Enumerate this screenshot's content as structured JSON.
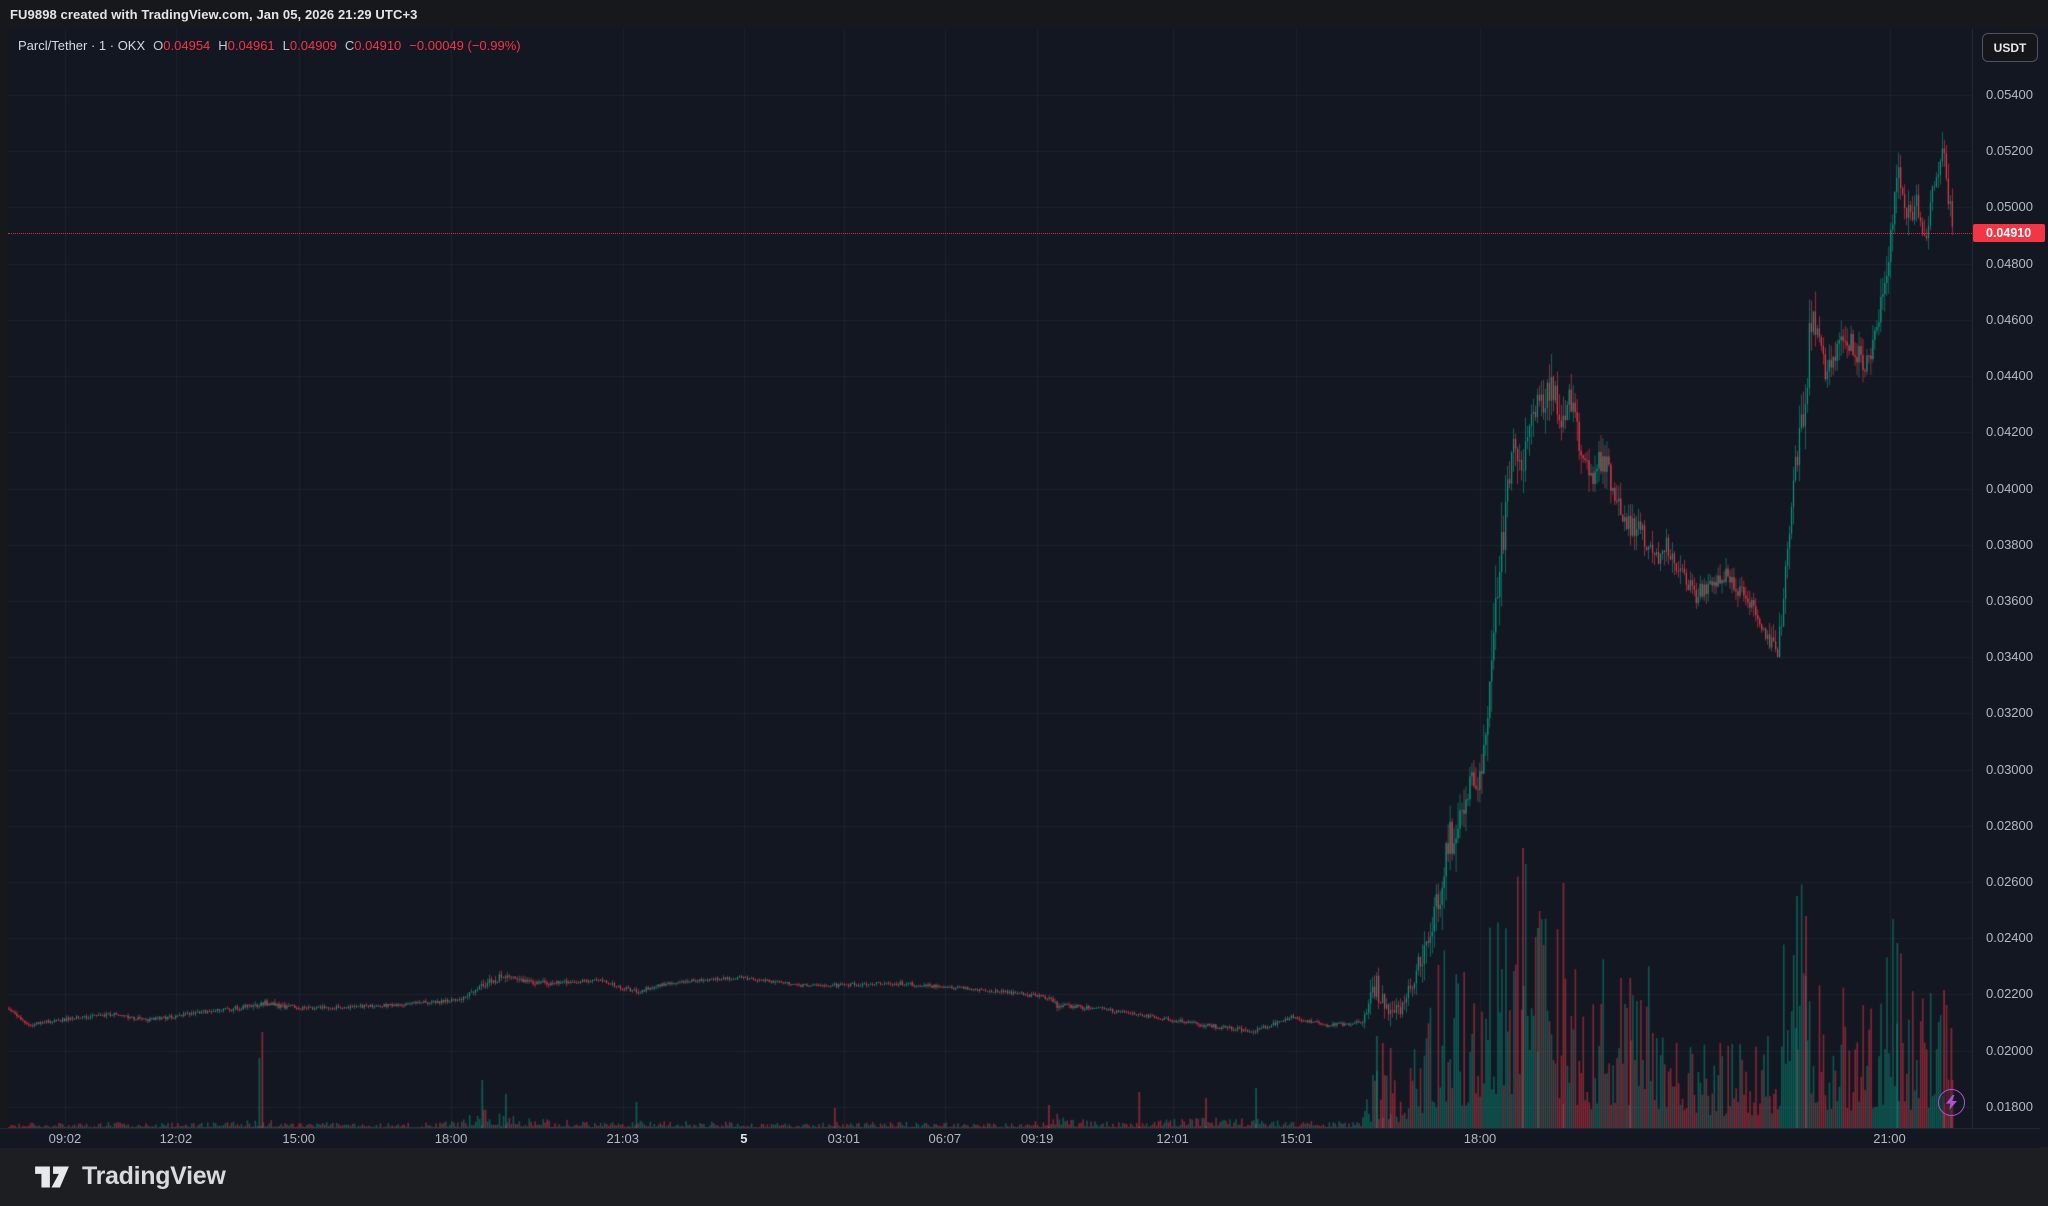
{
  "header": {
    "title": "FU9898 created with TradingView.com, Jan 05, 2026 21:29 UTC+3"
  },
  "legend": {
    "title": "Parcl/Tether · 1 · OKX",
    "ohlc": [
      {
        "label": "O",
        "value": "0.04954"
      },
      {
        "label": "H",
        "value": "0.04961"
      },
      {
        "label": "L",
        "value": "0.04909"
      },
      {
        "label": "C",
        "value": "0.04910"
      }
    ],
    "change": "−0.00049 (−0.99%)"
  },
  "price_axis": {
    "currency_button": "USDT",
    "tick_labels": [
      "0.05400",
      "0.05200",
      "0.05000",
      "0.04800",
      "0.04600",
      "0.04400",
      "0.04200",
      "0.04000",
      "0.03800",
      "0.03600",
      "0.03400",
      "0.03200",
      "0.03000",
      "0.02800",
      "0.02600",
      "0.02400",
      "0.02200",
      "0.02000",
      "0.01800"
    ],
    "tick_values": [
      0.054,
      0.052,
      0.05,
      0.048,
      0.046,
      0.044,
      0.042,
      0.04,
      0.038,
      0.036,
      0.034,
      0.032,
      0.03,
      0.028,
      0.026,
      0.024,
      0.022,
      0.02,
      0.018
    ],
    "last_price_label": "0.04910"
  },
  "time_axis": {
    "ticks": [
      {
        "label": "09:02",
        "f": 0.029,
        "day": false
      },
      {
        "label": "12:02",
        "f": 0.0855,
        "day": false
      },
      {
        "label": "15:00",
        "f": 0.148,
        "day": false
      },
      {
        "label": "18:00",
        "f": 0.2256,
        "day": false
      },
      {
        "label": "21:03",
        "f": 0.313,
        "day": false
      },
      {
        "label": "5",
        "f": 0.3747,
        "day": true
      },
      {
        "label": "03:01",
        "f": 0.4256,
        "day": false
      },
      {
        "label": "06:07",
        "f": 0.477,
        "day": false
      },
      {
        "label": "09:19",
        "f": 0.524,
        "day": false
      },
      {
        "label": "12:01",
        "f": 0.593,
        "day": false
      },
      {
        "label": "15:01",
        "f": 0.656,
        "day": false
      },
      {
        "label": "18:00",
        "f": 0.7495,
        "day": false
      },
      {
        "label": "21:00",
        "f": 0.958,
        "day": false
      }
    ]
  },
  "footer": {
    "brand": "TradingView"
  },
  "chart_data": {
    "type": "candlestick",
    "symbol": "Parcl/Tether",
    "pair": "PARCL/USDT",
    "interval": "1",
    "exchange": "OKX",
    "ohlc": {
      "open": 0.04954,
      "high": 0.04961,
      "low": 0.04909,
      "close": 0.0491,
      "change": -0.00049,
      "change_pct": -0.99
    },
    "last_price": 0.0491,
    "ylim_visible": [
      0.01725,
      0.05635
    ],
    "grid": true,
    "colors": {
      "background": "#131722",
      "up": "#089981",
      "down": "#f23645",
      "volume_up": "rgba(8,153,129,0.5)",
      "volume_down": "rgba(242,54,69,0.5)",
      "grid": "rgba(163,177,205,0.07)",
      "accent_red": "#f23645",
      "flash_purple": "#b44fd8"
    },
    "price_anchors_comment": "sampled trend read off chart: [x_fraction, price, local_noise, base_volume_px]",
    "price_anchors": [
      [
        0.001,
        0.0215,
        0.00015,
        4
      ],
      [
        0.009,
        0.0209,
        0.00015,
        5
      ],
      [
        0.027,
        0.0211,
        0.00015,
        4
      ],
      [
        0.052,
        0.0213,
        0.00015,
        5
      ],
      [
        0.072,
        0.0211,
        0.00015,
        4
      ],
      [
        0.103,
        0.0214,
        0.00015,
        5
      ],
      [
        0.126,
        0.0216,
        0.0002,
        8
      ],
      [
        0.129,
        0.0217,
        0.00025,
        10
      ],
      [
        0.149,
        0.0215,
        0.00015,
        5
      ],
      [
        0.189,
        0.0216,
        0.00013,
        4
      ],
      [
        0.23,
        0.0218,
        0.00016,
        6
      ],
      [
        0.241,
        0.0223,
        0.00028,
        16
      ],
      [
        0.253,
        0.0227,
        0.00028,
        12
      ],
      [
        0.271,
        0.0224,
        0.0002,
        8
      ],
      [
        0.301,
        0.0225,
        0.00015,
        5
      ],
      [
        0.32,
        0.0221,
        0.0002,
        9
      ],
      [
        0.335,
        0.0224,
        0.00015,
        6
      ],
      [
        0.373,
        0.0226,
        0.00013,
        5
      ],
      [
        0.408,
        0.0223,
        0.00013,
        5
      ],
      [
        0.454,
        0.0224,
        0.00015,
        5
      ],
      [
        0.505,
        0.0221,
        0.00013,
        4
      ],
      [
        0.53,
        0.0219,
        0.00016,
        6
      ],
      [
        0.534,
        0.0216,
        0.00022,
        12
      ],
      [
        0.556,
        0.0215,
        0.00013,
        5
      ],
      [
        0.582,
        0.0212,
        0.00013,
        6
      ],
      [
        0.61,
        0.0209,
        0.00016,
        9
      ],
      [
        0.635,
        0.0207,
        0.00016,
        8
      ],
      [
        0.654,
        0.0212,
        0.00016,
        7
      ],
      [
        0.671,
        0.0209,
        0.00013,
        5
      ],
      [
        0.689,
        0.021,
        0.00016,
        6
      ],
      [
        0.697,
        0.0222,
        0.0012,
        60
      ],
      [
        0.702,
        0.0213,
        0.0008,
        55
      ],
      [
        0.711,
        0.0216,
        0.0005,
        25
      ],
      [
        0.719,
        0.0232,
        0.0012,
        90
      ],
      [
        0.728,
        0.0253,
        0.0015,
        140
      ],
      [
        0.737,
        0.0283,
        0.0018,
        160
      ],
      [
        0.743,
        0.0292,
        0.0012,
        140
      ],
      [
        0.75,
        0.03,
        0.0012,
        130
      ],
      [
        0.756,
        0.034,
        0.002,
        190
      ],
      [
        0.761,
        0.0382,
        0.0022,
        180
      ],
      [
        0.766,
        0.0415,
        0.002,
        220
      ],
      [
        0.771,
        0.0408,
        0.0018,
        240
      ],
      [
        0.777,
        0.0425,
        0.0015,
        170
      ],
      [
        0.782,
        0.0432,
        0.0015,
        180
      ],
      [
        0.786,
        0.044,
        0.0014,
        200
      ],
      [
        0.79,
        0.0422,
        0.0013,
        160
      ],
      [
        0.795,
        0.0431,
        0.0012,
        140
      ],
      [
        0.801,
        0.0414,
        0.0012,
        130
      ],
      [
        0.807,
        0.0402,
        0.001,
        120
      ],
      [
        0.812,
        0.0413,
        0.0012,
        140
      ],
      [
        0.818,
        0.0398,
        0.001,
        130
      ],
      [
        0.826,
        0.0387,
        0.0009,
        120
      ],
      [
        0.834,
        0.0382,
        0.0009,
        150
      ],
      [
        0.839,
        0.0375,
        0.0008,
        110
      ],
      [
        0.844,
        0.0381,
        0.0008,
        95
      ],
      [
        0.851,
        0.037,
        0.0008,
        85
      ],
      [
        0.859,
        0.0362,
        0.0007,
        75
      ],
      [
        0.867,
        0.0366,
        0.0007,
        85
      ],
      [
        0.875,
        0.0369,
        0.0007,
        75
      ],
      [
        0.884,
        0.0362,
        0.0007,
        65
      ],
      [
        0.892,
        0.0353,
        0.0007,
        75
      ],
      [
        0.898,
        0.0344,
        0.0008,
        85
      ],
      [
        0.901,
        0.034,
        0.0008,
        100
      ],
      [
        0.904,
        0.0362,
        0.0012,
        150
      ],
      [
        0.907,
        0.039,
        0.0015,
        200
      ],
      [
        0.911,
        0.0412,
        0.0015,
        210
      ],
      [
        0.915,
        0.0428,
        0.0014,
        200
      ],
      [
        0.918,
        0.0462,
        0.0015,
        180
      ],
      [
        0.922,
        0.0455,
        0.0012,
        140
      ],
      [
        0.926,
        0.044,
        0.001,
        120
      ],
      [
        0.93,
        0.0445,
        0.001,
        110
      ],
      [
        0.936,
        0.0455,
        0.001,
        130
      ],
      [
        0.941,
        0.0448,
        0.0009,
        100
      ],
      [
        0.946,
        0.0444,
        0.001,
        110
      ],
      [
        0.951,
        0.0455,
        0.001,
        120
      ],
      [
        0.956,
        0.0472,
        0.0012,
        150
      ],
      [
        0.959,
        0.0492,
        0.0013,
        170
      ],
      [
        0.962,
        0.0512,
        0.0013,
        175
      ],
      [
        0.966,
        0.05,
        0.0011,
        140
      ],
      [
        0.969,
        0.0494,
        0.001,
        120
      ],
      [
        0.972,
        0.0505,
        0.001,
        110
      ],
      [
        0.975,
        0.0488,
        0.001,
        120
      ],
      [
        0.979,
        0.05,
        0.001,
        110
      ],
      [
        0.982,
        0.0512,
        0.001,
        120
      ],
      [
        0.986,
        0.0521,
        0.0011,
        130
      ],
      [
        0.988,
        0.0505,
        0.001,
        100
      ],
      [
        0.9905,
        0.0491,
        0.0009,
        80
      ]
    ],
    "volume_spikes_comment": "standout volume bars: [x_fraction, height_px, direction]",
    "volume_spikes": [
      [
        0.128,
        70,
        "up"
      ],
      [
        0.1295,
        96,
        "down"
      ],
      [
        0.2415,
        48,
        "up"
      ],
      [
        0.2535,
        34,
        "up"
      ],
      [
        0.32,
        26,
        "up"
      ],
      [
        0.421,
        20,
        "down"
      ],
      [
        0.53,
        23,
        "down"
      ],
      [
        0.576,
        36,
        "down"
      ],
      [
        0.61,
        30,
        "down"
      ],
      [
        0.6355,
        40,
        "up"
      ],
      [
        0.697,
        92,
        "up"
      ],
      [
        0.7,
        85,
        "down"
      ],
      [
        0.704,
        80,
        "down"
      ],
      [
        0.7714,
        280,
        "down"
      ],
      [
        0.779,
        200,
        "up"
      ],
      [
        0.792,
        245,
        "down"
      ],
      [
        0.826,
        150,
        "down"
      ],
      [
        0.9109,
        232,
        "up"
      ],
      [
        0.9155,
        212,
        "down"
      ],
      [
        0.962,
        185,
        "up"
      ],
      [
        0.9858,
        138,
        "down"
      ],
      [
        0.9895,
        100,
        "down"
      ]
    ]
  }
}
